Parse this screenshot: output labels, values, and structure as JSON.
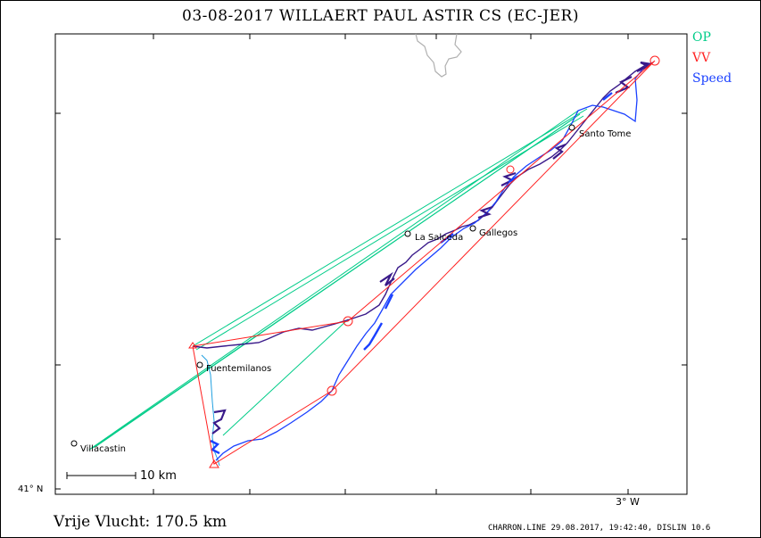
{
  "title": "03-08-2017    WILLAERT PAUL    ASTIR CS (EC-JER)",
  "legend": {
    "op": "OP",
    "vv": "VV",
    "speed": "Speed"
  },
  "colors": {
    "op": "#00cc88",
    "vv": "#ff2020",
    "speed": "#1a40ff",
    "track_dark": "#3a1a8a",
    "track_light": "#20a0e0",
    "coast": "#b0b0b0"
  },
  "distance": "Vrije Vlucht:  170.5 km",
  "credit": "CHARRON.LINE 29.08.2017, 19:42:40, DISLIN 10.6",
  "axes": {
    "lat_label": "41° N",
    "lon_label": "3° W"
  },
  "scale": {
    "label": "10 km"
  },
  "towns": [
    {
      "name": "Santo Tome"
    },
    {
      "name": "La Salceda"
    },
    {
      "name": "Gallegos"
    },
    {
      "name": "Fuentemilanos"
    },
    {
      "name": "Villacastin"
    }
  ]
}
